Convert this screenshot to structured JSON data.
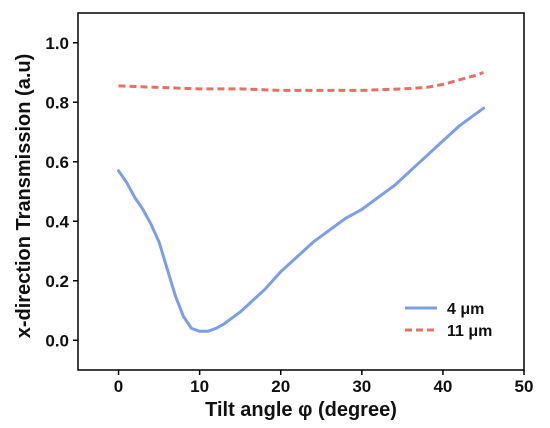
{
  "chart_data": {
    "type": "line",
    "title": "",
    "xlabel": "Tilt angle φ (degree)",
    "ylabel": "x-direction Transmission (a.u)",
    "xlim": [
      -5,
      50
    ],
    "ylim": [
      -0.1,
      1.1
    ],
    "x_ticks": [
      0,
      10,
      20,
      30,
      40,
      50
    ],
    "x_tick_labels": [
      "0",
      "10",
      "20",
      "30",
      "40",
      "50"
    ],
    "y_ticks": [
      0.0,
      0.2,
      0.4,
      0.6,
      0.8,
      1.0
    ],
    "y_tick_labels": [
      "0.0",
      "0.2",
      "0.4",
      "0.6",
      "0.8",
      "1.0"
    ],
    "grid": false,
    "legend_position": "bottom-right",
    "series": [
      {
        "name": "4 μm",
        "color": "#7b9ee6",
        "style": "solid",
        "x": [
          0,
          1,
          2,
          3,
          4,
          5,
          6,
          7,
          8,
          9,
          10,
          11,
          12,
          13,
          14,
          15,
          16,
          17,
          18,
          20,
          22,
          24,
          26,
          28,
          30,
          32,
          34,
          36,
          38,
          40,
          42,
          44,
          45
        ],
        "y": [
          0.57,
          0.53,
          0.48,
          0.44,
          0.39,
          0.33,
          0.24,
          0.15,
          0.08,
          0.04,
          0.03,
          0.03,
          0.04,
          0.055,
          0.075,
          0.095,
          0.12,
          0.145,
          0.17,
          0.23,
          0.28,
          0.33,
          0.37,
          0.41,
          0.44,
          0.48,
          0.52,
          0.57,
          0.62,
          0.67,
          0.72,
          0.76,
          0.78
        ]
      },
      {
        "name": "11 μm",
        "color": "#e87060",
        "style": "dashed",
        "x": [
          0,
          5,
          10,
          15,
          20,
          25,
          30,
          35,
          38,
          40,
          42,
          44,
          45
        ],
        "y": [
          0.855,
          0.85,
          0.845,
          0.845,
          0.84,
          0.84,
          0.84,
          0.845,
          0.85,
          0.86,
          0.875,
          0.89,
          0.9
        ]
      }
    ]
  }
}
